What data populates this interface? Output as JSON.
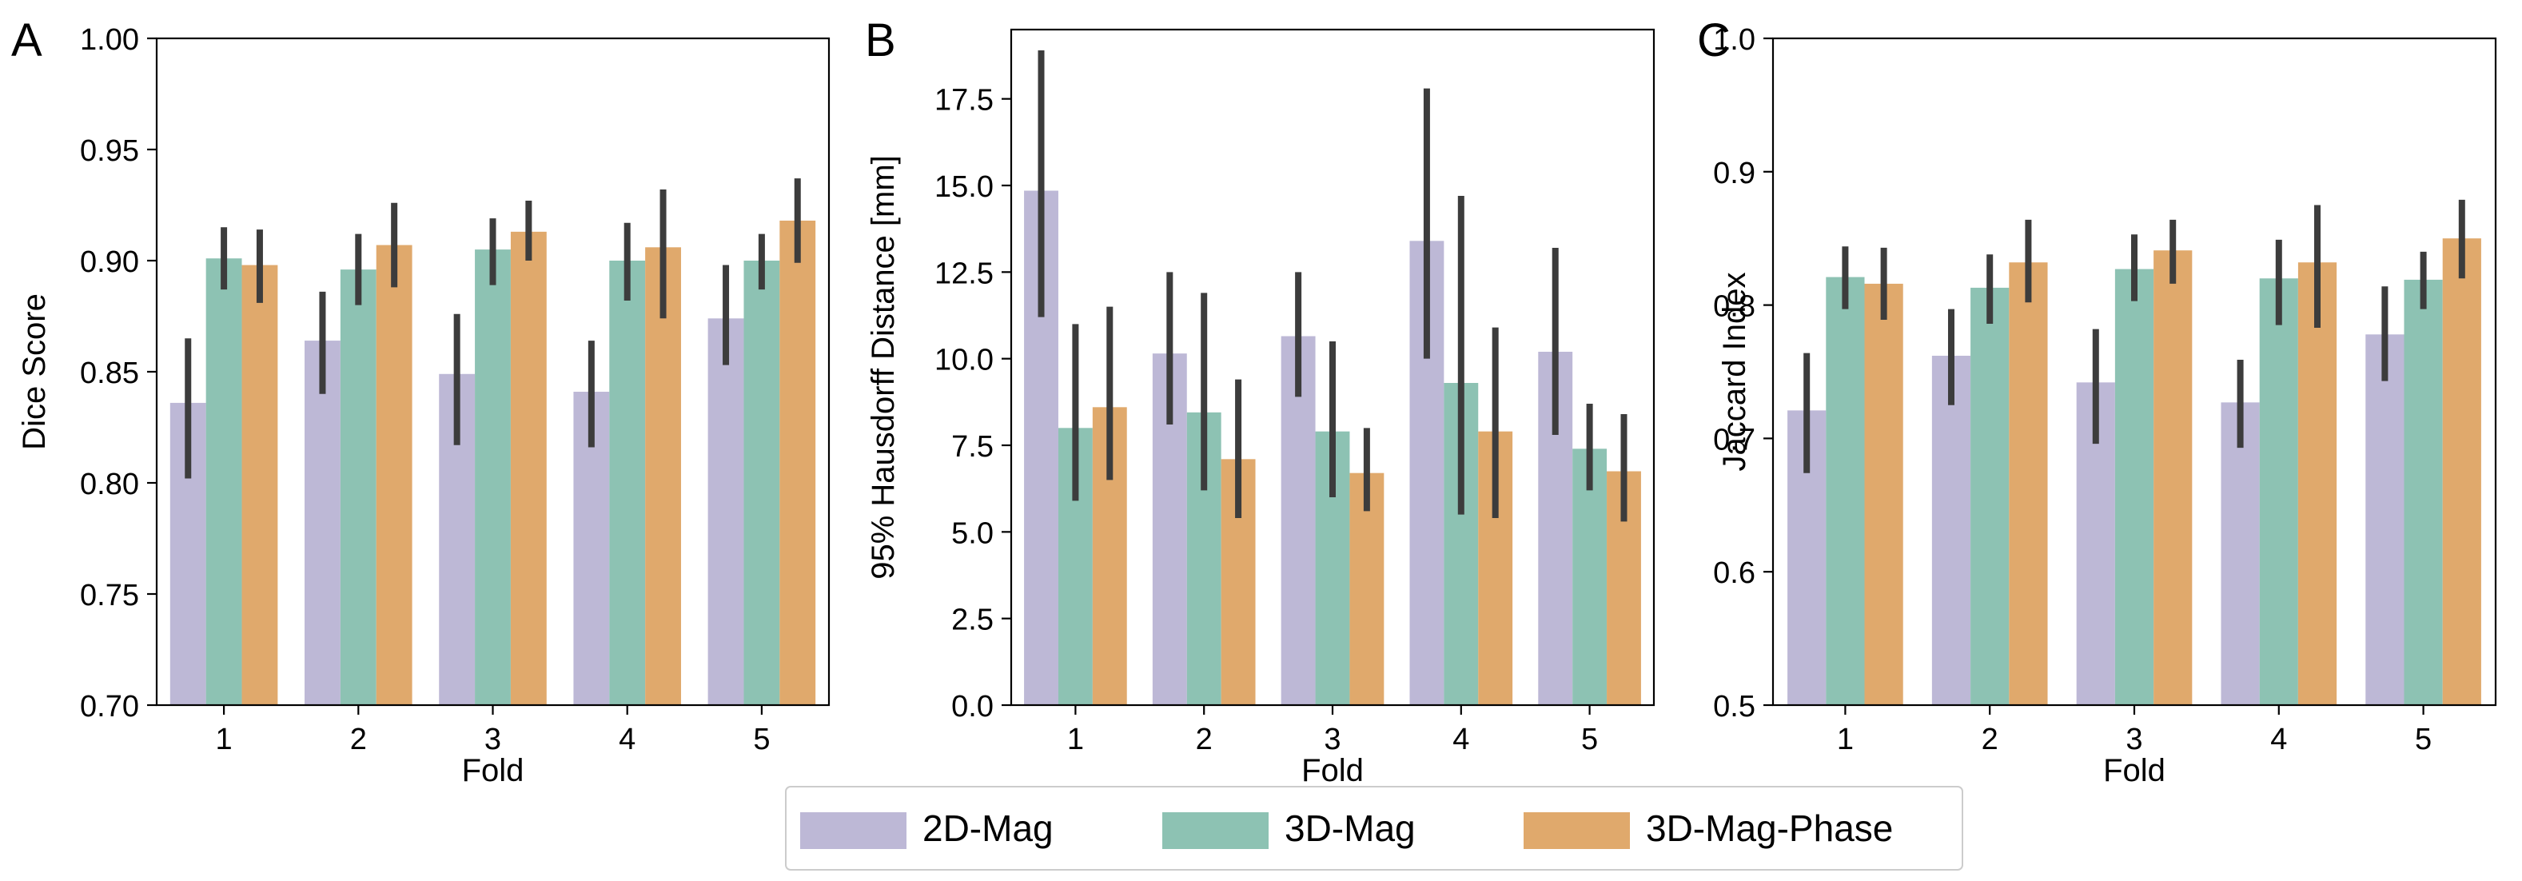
{
  "colors": {
    "2D-Mag": "#BDB8D6",
    "3D-Mag": "#8DC2B3",
    "3D-Mag-Phase": "#E0A96C",
    "errorbar": "#3C3C3C",
    "axis": "#000000"
  },
  "legend": {
    "entries": [
      "2D-Mag",
      "3D-Mag",
      "3D-Mag-Phase"
    ],
    "placement": "bottom-center"
  },
  "chart_data": [
    {
      "panel_label": "A",
      "type": "bar",
      "xlabel": "Fold",
      "ylabel": "Dice Score",
      "categories": [
        "1",
        "2",
        "3",
        "4",
        "5"
      ],
      "ylim": [
        0.7,
        1.0
      ],
      "yticks": [
        "0.70",
        "0.75",
        "0.80",
        "0.85",
        "0.90",
        "0.95",
        "1.00"
      ],
      "series": [
        {
          "name": "2D-Mag",
          "values": [
            0.836,
            0.864,
            0.849,
            0.841,
            0.874
          ],
          "err_low": [
            0.802,
            0.84,
            0.817,
            0.816,
            0.853
          ],
          "err_high": [
            0.865,
            0.886,
            0.876,
            0.864,
            0.898
          ]
        },
        {
          "name": "3D-Mag",
          "values": [
            0.901,
            0.896,
            0.905,
            0.9,
            0.9
          ],
          "err_low": [
            0.887,
            0.88,
            0.889,
            0.882,
            0.887
          ],
          "err_high": [
            0.915,
            0.912,
            0.919,
            0.917,
            0.912
          ]
        },
        {
          "name": "3D-Mag-Phase",
          "values": [
            0.898,
            0.907,
            0.913,
            0.906,
            0.918
          ],
          "err_low": [
            0.881,
            0.888,
            0.9,
            0.874,
            0.899
          ],
          "err_high": [
            0.914,
            0.926,
            0.927,
            0.932,
            0.937
          ]
        }
      ]
    },
    {
      "panel_label": "B",
      "type": "bar",
      "xlabel": "Fold",
      "ylabel": "95% Hausdorff Distance [mm]",
      "categories": [
        "1",
        "2",
        "3",
        "4",
        "5"
      ],
      "ylim": [
        0.0,
        19.5
      ],
      "yticks": [
        "0.0",
        "2.5",
        "5.0",
        "7.5",
        "10.0",
        "12.5",
        "15.0",
        "17.5"
      ],
      "series": [
        {
          "name": "2D-Mag",
          "values": [
            14.85,
            10.15,
            10.65,
            13.4,
            10.2
          ],
          "err_low": [
            11.2,
            8.1,
            8.9,
            10.0,
            7.8
          ],
          "err_high": [
            18.9,
            12.5,
            12.5,
            17.8,
            13.2
          ]
        },
        {
          "name": "3D-Mag",
          "values": [
            8.0,
            8.45,
            7.9,
            9.3,
            7.4
          ],
          "err_low": [
            5.9,
            6.2,
            6.0,
            5.5,
            6.2
          ],
          "err_high": [
            11.0,
            11.9,
            10.5,
            14.7,
            8.7
          ]
        },
        {
          "name": "3D-Mag-Phase",
          "values": [
            8.6,
            7.1,
            6.7,
            7.9,
            6.75
          ],
          "err_low": [
            6.5,
            5.4,
            5.6,
            5.4,
            5.3
          ],
          "err_high": [
            11.5,
            9.4,
            8.0,
            10.9,
            8.4
          ]
        }
      ]
    },
    {
      "panel_label": "C",
      "type": "bar",
      "xlabel": "Fold",
      "ylabel": "Jaccard Index",
      "categories": [
        "1",
        "2",
        "3",
        "4",
        "5"
      ],
      "ylim": [
        0.5,
        1.0
      ],
      "yticks": [
        "0.5",
        "0.6",
        "0.7",
        "0.8",
        "0.9",
        "1.0"
      ],
      "series": [
        {
          "name": "2D-Mag",
          "values": [
            0.721,
            0.762,
            0.742,
            0.727,
            0.778
          ],
          "err_low": [
            0.674,
            0.725,
            0.696,
            0.693,
            0.743
          ],
          "err_high": [
            0.764,
            0.797,
            0.782,
            0.759,
            0.814
          ]
        },
        {
          "name": "3D-Mag",
          "values": [
            0.821,
            0.813,
            0.827,
            0.82,
            0.819
          ],
          "err_low": [
            0.797,
            0.786,
            0.803,
            0.785,
            0.797
          ],
          "err_high": [
            0.844,
            0.838,
            0.853,
            0.849,
            0.84
          ]
        },
        {
          "name": "3D-Mag-Phase",
          "values": [
            0.816,
            0.832,
            0.841,
            0.832,
            0.85
          ],
          "err_low": [
            0.789,
            0.802,
            0.816,
            0.783,
            0.82
          ],
          "err_high": [
            0.843,
            0.864,
            0.864,
            0.875,
            0.879
          ]
        }
      ]
    }
  ]
}
